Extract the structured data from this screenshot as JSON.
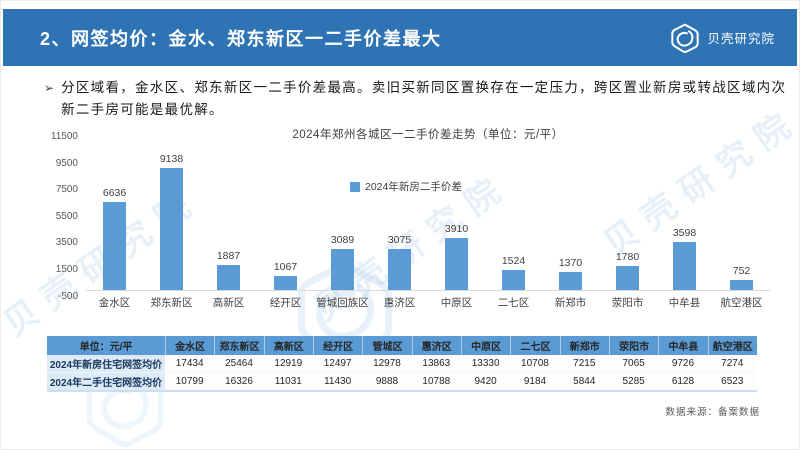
{
  "slide": {
    "header": {
      "title": "2、网签均价：金水、郑东新区一二手价差最大",
      "logo_text": "贝壳研究院"
    },
    "bullet": {
      "marker": "➢",
      "text": "分区域看，金水区、郑东新区一二手价差最高。卖旧买新同区置换存在一定压力，跨区置业新房或转战区域内次新二手房可能是最优解。"
    },
    "footer": {
      "source": "数据来源：备案数据"
    },
    "watermark": "贝壳研究院"
  },
  "chart_data": {
    "type": "bar",
    "title": "2024年郑州各城区一二手价差走势（单位：元/平）",
    "legend": [
      "2024年新房二手价差"
    ],
    "legend_position": "center",
    "categories": [
      "金水区",
      "郑东新区",
      "高新区",
      "经开区",
      "管城回族区",
      "惠济区",
      "中原区",
      "二七区",
      "新郑市",
      "荥阳市",
      "中牟县",
      "航空港区"
    ],
    "values": [
      6636,
      9138,
      1887,
      1067,
      3089,
      3075,
      3910,
      1524,
      1370,
      1780,
      3598,
      752
    ],
    "ylim": [
      -500,
      11500
    ],
    "yticks": [
      -500,
      1500,
      3500,
      5500,
      7500,
      9500,
      11500
    ],
    "grid": false,
    "bar_color": "#5B9BD5",
    "xlabel": "",
    "ylabel": ""
  },
  "table": {
    "unit_header": "单位：元/平",
    "columns": [
      "金水区",
      "郑东新区",
      "高新区",
      "经开区",
      "管城区",
      "惠济区",
      "中原区",
      "二七区",
      "新郑市",
      "荥阳市",
      "中牟县",
      "航空港区"
    ],
    "rows": [
      {
        "label": "2024年新房住宅网签均价",
        "values": [
          17434,
          25464,
          12919,
          12497,
          12978,
          13863,
          13330,
          10708,
          7215,
          7065,
          9726,
          7274
        ]
      },
      {
        "label": "2024年二手住宅网签均价",
        "values": [
          10799,
          16326,
          11031,
          11430,
          9888,
          10788,
          9420,
          9184,
          5844,
          5285,
          6128,
          6523
        ]
      }
    ]
  },
  "colors": {
    "header_bg": "#2E74B5",
    "bar": "#5B9BD5",
    "table_header_bg": "#5B9BD5",
    "table_header_text": "#1F3864",
    "row_label_bg": "#DEEBF7",
    "row_label_text": "#17375E",
    "watermark": "rgba(91,155,213,0.15)"
  }
}
